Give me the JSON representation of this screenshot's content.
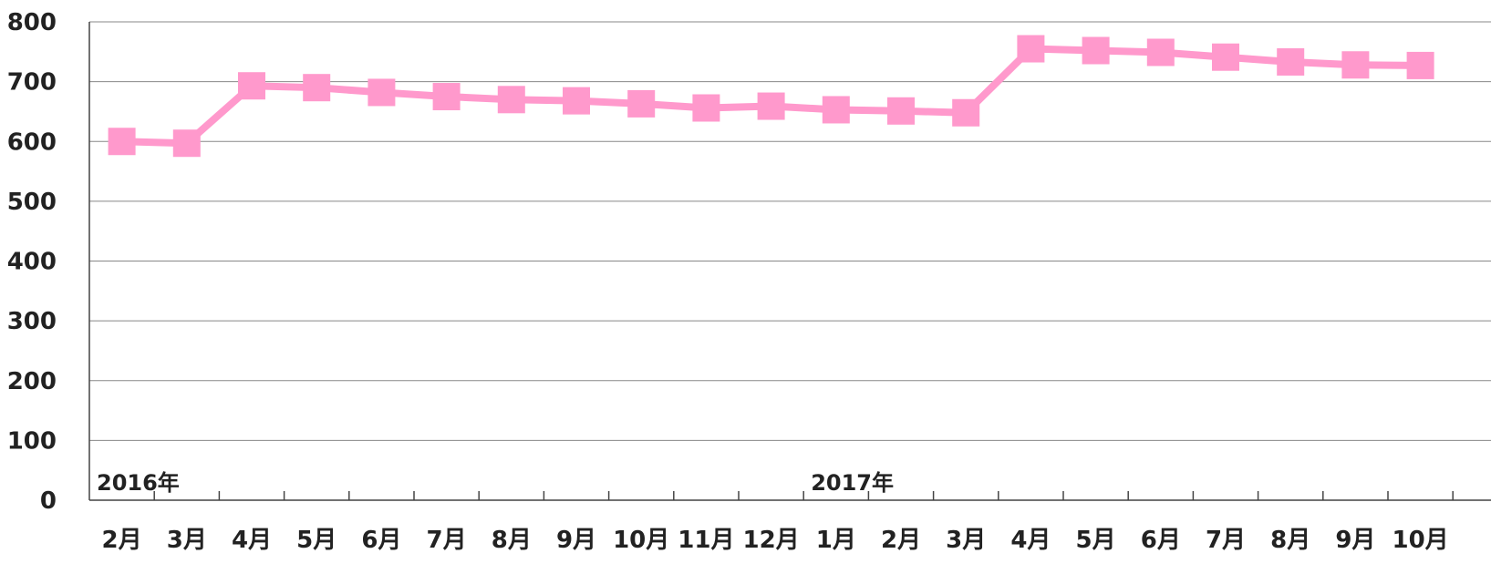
{
  "chart_data": {
    "type": "line",
    "title": "",
    "xlabel": "",
    "ylabel": "",
    "ylim": [
      0,
      800
    ],
    "yticks": [
      "0",
      "100",
      "200",
      "300",
      "400",
      "500",
      "600",
      "700",
      "800"
    ],
    "grid": true,
    "legend": "none",
    "categories": [
      "2月",
      "3月",
      "4月",
      "5月",
      "6月",
      "7月",
      "8月",
      "9月",
      "10月",
      "11月",
      "12月",
      "1月",
      "2月",
      "3月",
      "4月",
      "5月",
      "6月",
      "7月",
      "8月",
      "9月",
      "10月"
    ],
    "year_labels": [
      {
        "text": "2016年",
        "category_index": 0
      },
      {
        "text": "2017年",
        "category_index": 11
      }
    ],
    "series": [
      {
        "color": "#ff99cc",
        "marker": "square",
        "values": [
          600,
          597,
          693,
          690,
          682,
          675,
          670,
          668,
          663,
          656,
          659,
          653,
          651,
          648,
          755,
          752,
          749,
          741,
          733,
          728,
          727
        ]
      }
    ]
  }
}
